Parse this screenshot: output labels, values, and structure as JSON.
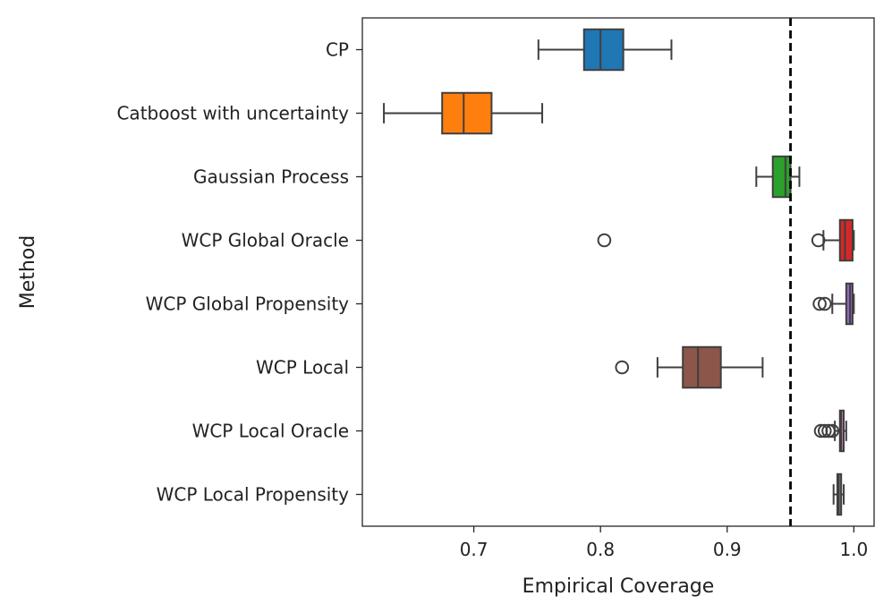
{
  "chart_data": {
    "type": "boxplot",
    "orientation": "horizontal",
    "title": "",
    "xlabel": "Empirical Coverage",
    "ylabel": "Method",
    "xlim": [
      0.612,
      1.016
    ],
    "xticks": [
      0.7,
      0.8,
      0.9,
      1.0
    ],
    "xtick_labels": [
      "0.7",
      "0.8",
      "0.9",
      "1.0"
    ],
    "reference_line": {
      "x": 0.95,
      "style": "dashed",
      "color": "#000000"
    },
    "categories": [
      "CP",
      "Catboost with uncertainty",
      "Gaussian Process",
      "WCP Global Oracle",
      "WCP Global Propensity",
      "WCP Local",
      "WCP Local Oracle",
      "WCP Local Propensity"
    ],
    "boxes": [
      {
        "name": "CP",
        "color": "#1f77b4",
        "whisker_low": 0.751,
        "q1": 0.787,
        "median": 0.8,
        "q3": 0.818,
        "whisker_high": 0.856,
        "outliers": []
      },
      {
        "name": "Catboost with uncertainty",
        "color": "#ff7f0e",
        "whisker_low": 0.629,
        "q1": 0.675,
        "median": 0.692,
        "q3": 0.714,
        "whisker_high": 0.754,
        "outliers": []
      },
      {
        "name": "Gaussian Process",
        "color": "#2ca02c",
        "whisker_low": 0.923,
        "q1": 0.936,
        "median": 0.946,
        "q3": 0.95,
        "whisker_high": 0.957,
        "outliers": []
      },
      {
        "name": "WCP Global Oracle",
        "color": "#d62728",
        "whisker_low": 0.976,
        "q1": 0.989,
        "median": 0.993,
        "q3": 0.999,
        "whisker_high": 1.0,
        "outliers": [
          0.803,
          0.972
        ]
      },
      {
        "name": "WCP Global Propensity",
        "color": "#9467bd",
        "whisker_low": 0.983,
        "q1": 0.994,
        "median": 0.997,
        "q3": 0.999,
        "whisker_high": 1.0,
        "outliers": [
          0.973,
          0.977
        ]
      },
      {
        "name": "WCP Local",
        "color": "#8c564b",
        "whisker_low": 0.845,
        "q1": 0.865,
        "median": 0.877,
        "q3": 0.895,
        "whisker_high": 0.928,
        "outliers": [
          0.817
        ]
      },
      {
        "name": "WCP Local Oracle",
        "color": "#e377c2",
        "whisker_low": 0.985,
        "q1": 0.989,
        "median": 0.99,
        "q3": 0.992,
        "whisker_high": 0.994,
        "outliers": [
          0.974,
          0.977,
          0.98,
          0.983
        ]
      },
      {
        "name": "WCP Local Propensity",
        "color": "#7f7f7f",
        "whisker_low": 0.984,
        "q1": 0.987,
        "median": 0.988,
        "q3": 0.99,
        "whisker_high": 0.992,
        "outliers": []
      }
    ]
  }
}
